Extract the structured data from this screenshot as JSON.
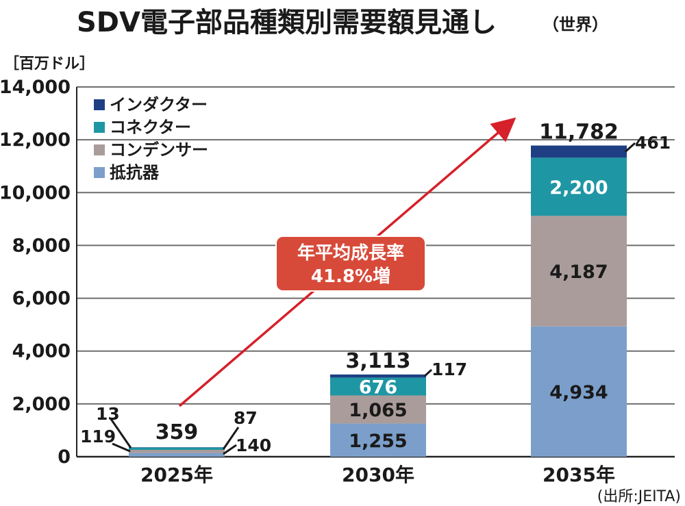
{
  "chart_data": {
    "type": "bar",
    "stacked": true,
    "title": "SDV電子部品種類別需要額見通し",
    "subtitle": "（世界）",
    "unit_label": "［百万ドル］",
    "ylim": [
      0,
      14000
    ],
    "yticks": [
      0,
      2000,
      4000,
      6000,
      8000,
      10000,
      12000,
      14000
    ],
    "ytick_labels": [
      "0",
      "2,000",
      "4,000",
      "6,000",
      "8,000",
      "10,000",
      "12,000",
      "14,000"
    ],
    "grid": true,
    "legend_position": "top-left",
    "categories": [
      "2025年",
      "2030年",
      "2035年"
    ],
    "series": [
      {
        "name": "抵抗器",
        "color": "#7b9fca",
        "values": [
          140,
          1255,
          4934
        ],
        "labels": [
          "140",
          "1,255",
          "4,934"
        ]
      },
      {
        "name": "コンデンサー",
        "color": "#a99c9b",
        "values": [
          119,
          1065,
          4187
        ],
        "labels": [
          "119",
          "1,065",
          "4,187"
        ]
      },
      {
        "name": "コネクター",
        "color": "#1f96a4",
        "values": [
          87,
          676,
          2200
        ],
        "labels": [
          "87",
          "676",
          "2,200"
        ]
      },
      {
        "name": "インダクター",
        "color": "#1e3f83",
        "values": [
          13,
          117,
          461
        ],
        "labels": [
          "13",
          "117",
          "461"
        ]
      }
    ],
    "totals": [
      359,
      3113,
      11782
    ],
    "total_labels": [
      "359",
      "3,113",
      "11,782"
    ],
    "annotation": {
      "line1": "年平均成長率",
      "line2": "41.8%増"
    },
    "source": "(出所:JEITA)"
  }
}
